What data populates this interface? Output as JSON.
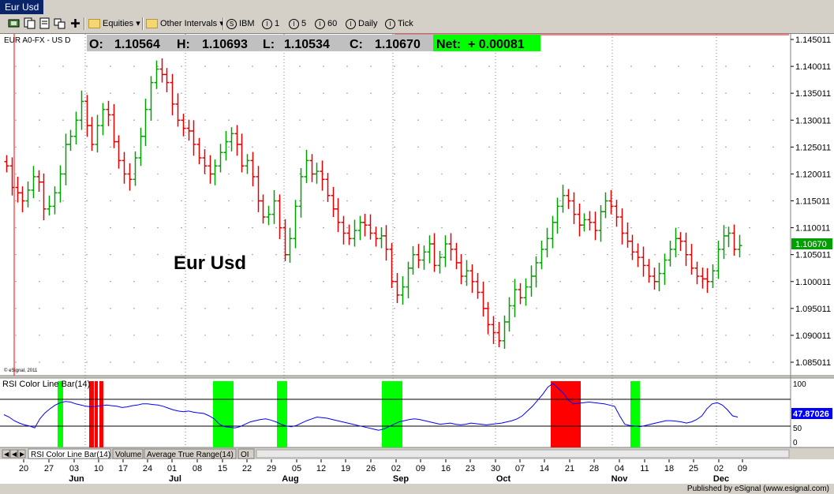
{
  "window": {
    "title": "Eur Usd"
  },
  "toolbar": {
    "equities_label": "Equities",
    "intervals_label": "Other Intervals",
    "symbol_label": "IBM",
    "interval_1": "1",
    "interval_5": "5",
    "interval_60": "60",
    "daily_label": "Daily",
    "tick_label": "Tick"
  },
  "header": {
    "symbol": "EUR A0-FX - US D",
    "o_label": "O:",
    "o_value": "1.10564",
    "h_label": "H:",
    "h_value": "1.10693",
    "l_label": "L:",
    "l_value": "1.10534",
    "c_label": "C:",
    "c_value": "1.10670",
    "net_label": "Net:",
    "net_value": "+ 0.00081",
    "watermark": "© eSignal, 2011"
  },
  "chart_data": {
    "type": "bar",
    "title": "Eur Usd",
    "price_axis": {
      "ticks": [
        "1.145011",
        "1.140011",
        "1.135011",
        "1.130011",
        "1.125011",
        "1.120011",
        "1.115011",
        "1.110011",
        "1.105011",
        "1.100011",
        "1.095011",
        "1.090011",
        "1.085011"
      ],
      "last_price": "1.10670",
      "ylim": [
        1.0835,
        1.1465
      ]
    },
    "date_axis": {
      "day_ticks": [
        "20",
        "27",
        "03",
        "10",
        "17",
        "24",
        "01",
        "08",
        "15",
        "22",
        "29",
        "05",
        "12",
        "19",
        "26",
        "02",
        "09",
        "16",
        "23",
        "30",
        "07",
        "14",
        "21",
        "28",
        "04",
        "11",
        "18",
        "25",
        "02",
        "09"
      ],
      "month_ticks": [
        "Jun",
        "Jul",
        "Aug",
        "Sep",
        "Oct",
        "Nov",
        "Dec"
      ]
    },
    "ohlc_closes": [
      1.1215,
      1.1175,
      1.1165,
      1.115,
      1.117,
      1.1195,
      1.1185,
      1.1135,
      1.114,
      1.1165,
      1.12,
      1.1255,
      1.127,
      1.13,
      1.1335,
      1.129,
      1.1255,
      1.129,
      1.132,
      1.131,
      1.126,
      1.1225,
      1.12,
      1.119,
      1.123,
      1.127,
      1.132,
      1.137,
      1.1395,
      1.1385,
      1.137,
      1.133,
      1.13,
      1.1285,
      1.128,
      1.1255,
      1.123,
      1.1215,
      1.12,
      1.1215,
      1.124,
      1.126,
      1.1275,
      1.1255,
      1.1215,
      1.1225,
      1.1195,
      1.115,
      1.112,
      1.1125,
      1.115,
      1.11,
      1.105,
      1.108,
      1.114,
      1.1195,
      1.1225,
      1.12,
      1.1205,
      1.119,
      1.116,
      1.1135,
      1.111,
      1.109,
      1.108,
      1.1095,
      1.111,
      1.1105,
      1.109,
      1.108,
      1.1085,
      1.106,
      1.1,
      1.0975,
      1.099,
      1.1025,
      1.105,
      1.104,
      1.1055,
      1.107,
      1.103,
      1.1045,
      1.107,
      1.106,
      1.1035,
      1.101,
      1.102,
      1.1,
      1.098,
      1.095,
      1.092,
      1.0905,
      1.089,
      1.0925,
      1.0955,
      1.0985,
      1.097,
      1.099,
      1.101,
      1.1035,
      1.106,
      1.108,
      1.111,
      1.114,
      1.116,
      1.115,
      1.1125,
      1.1105,
      1.1115,
      1.111,
      1.1095,
      1.113,
      1.115,
      1.114,
      1.112,
      1.109,
      1.1075,
      1.1055,
      1.1045,
      1.103,
      1.101,
      1.1,
      1.1015,
      1.104,
      1.106,
      1.108,
      1.1075,
      1.105,
      1.1025,
      1.101,
      1.1005,
      1.1,
      1.102,
      1.106,
      1.1085,
      1.109,
      1.106,
      1.1067
    ],
    "rsi_panel": {
      "title": "RSI Color Line Bar(14)",
      "axis_ticks": [
        "100",
        "50",
        "0"
      ],
      "current_value": "47.87026",
      "overbought": 70,
      "oversold": 30,
      "values": [
        52,
        48,
        42,
        38,
        35,
        33,
        30,
        45,
        55,
        62,
        68,
        72,
        74,
        73,
        70,
        68,
        66,
        65,
        66,
        67,
        68,
        67,
        66,
        64,
        65,
        67,
        68,
        70,
        70,
        69,
        68,
        66,
        63,
        60,
        58,
        57,
        58,
        56,
        55,
        54,
        50,
        45,
        36,
        32,
        31,
        30,
        32,
        36,
        40,
        42,
        44,
        45,
        43,
        40,
        36,
        33,
        32,
        34,
        38,
        42,
        45,
        48,
        47,
        46,
        44,
        42,
        40,
        38,
        36,
        34,
        32,
        30,
        28,
        26,
        28,
        32,
        36,
        40,
        42,
        44,
        45,
        44,
        42,
        40,
        38,
        36,
        37,
        38,
        36,
        35,
        36,
        38,
        37,
        36,
        35,
        36,
        37,
        38,
        40,
        42,
        45,
        50,
        58,
        66,
        76,
        86,
        98,
        104,
        96,
        88,
        76,
        70,
        71,
        72,
        73,
        72,
        71,
        70,
        68,
        66,
        50,
        36,
        34,
        33,
        32,
        34,
        36,
        38,
        40,
        42,
        42,
        41,
        40,
        38,
        40,
        44,
        50,
        62,
        70,
        72,
        68,
        60,
        50,
        48
      ]
    },
    "tabs": [
      "RSI Color Line Bar(14)",
      "Volume",
      "Average True Range(14)",
      "OI"
    ],
    "colors": {
      "up": "#00a000",
      "down": "#e00000",
      "rsi_line": "#0000ff",
      "overbought_fill": "#ff0000",
      "oversold_fill": "#00ff00",
      "net_bg": "#00ff00"
    }
  },
  "status": {
    "published": "Published by eSignal (www.esignal.com)"
  }
}
